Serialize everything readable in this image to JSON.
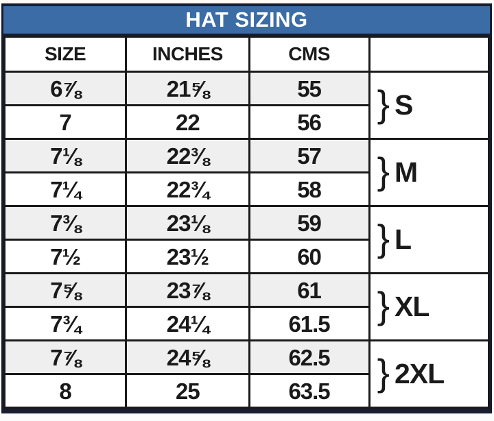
{
  "chart_data": {
    "type": "table",
    "title": "HAT SIZING",
    "columns": [
      "SIZE",
      "INCHES",
      "CMS",
      ""
    ],
    "rows": [
      [
        "6⅞",
        "21⅝",
        "55"
      ],
      [
        "7",
        "22",
        "56"
      ],
      [
        "7⅛",
        "22⅜",
        "57"
      ],
      [
        "7¼",
        "22¾",
        "58"
      ],
      [
        "7⅜",
        "23⅛",
        "59"
      ],
      [
        "7½",
        "23½",
        "60"
      ],
      [
        "7⅝",
        "23⅞",
        "61"
      ],
      [
        "7¾",
        "24¼",
        "61.5"
      ],
      [
        "7⅞",
        "24⅝",
        "62.5"
      ],
      [
        "8",
        "25",
        "63.5"
      ]
    ],
    "row_groups": [
      {
        "label": "S",
        "rows": [
          0,
          1
        ]
      },
      {
        "label": "M",
        "rows": [
          2,
          3
        ]
      },
      {
        "label": "L",
        "rows": [
          4,
          5
        ]
      },
      {
        "label": "XL",
        "rows": [
          6,
          7
        ]
      },
      {
        "label": "2XL",
        "rows": [
          8,
          9
        ]
      }
    ],
    "layout": {
      "alternating_row_shading": true,
      "grid": true,
      "group_bracket_column_position": "right"
    }
  },
  "ui": {
    "bracket_glyph": "}",
    "colors": {
      "title_bar_bg": "#3B6CA6",
      "title_text": "#FFFFFF",
      "outer_border": "#171C2E",
      "grid_line": "#1A1A1A",
      "alt_row_bg": "#EFEFEF",
      "row_bg": "#FFFFFF",
      "cell_text": "#1A1A1A"
    }
  }
}
